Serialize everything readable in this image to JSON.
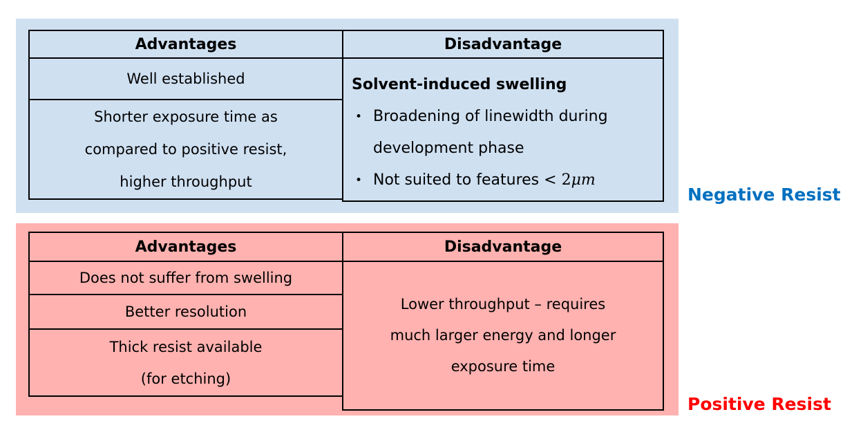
{
  "negative_section": {
    "label": "Negative Resist",
    "colors": {
      "panel": "#cfe0f1",
      "label": "#0070c0",
      "border": "#000000"
    },
    "table": {
      "advantages": {
        "header": "Advantages",
        "row1": {
          "line1": "Well established"
        },
        "row2": {
          "line1": "Shorter exposure time as",
          "line2": "compared to positive resist,",
          "line3": "higher throughput"
        }
      },
      "disadvantage": {
        "header": "Disadvantage",
        "title": "Solvent-induced swelling",
        "bullet_icon": "•",
        "bullet1": {
          "line1": "Broadening of linewidth during",
          "line2": "development phase"
        },
        "bullet2": {
          "text": "Not suited to features",
          "math_prefix": "< 2",
          "math_italic": "μm"
        }
      }
    }
  },
  "positive_section": {
    "label": "Positive Resist",
    "colors": {
      "panel": "#ffb2b0",
      "label": "#ff0000",
      "border": "#000000"
    },
    "table": {
      "advantages": {
        "header": "Advantages",
        "row1": {
          "line1": "Does not suffer from swelling"
        },
        "row2": {
          "line1": "Better resolution"
        },
        "row3": {
          "line1": "Thick resist available",
          "line2": "(for etching)"
        }
      },
      "disadvantage": {
        "header": "Disadvantage",
        "line1": "Lower throughput – requires",
        "line2": "much larger energy and longer",
        "line3": "exposure time"
      }
    }
  }
}
